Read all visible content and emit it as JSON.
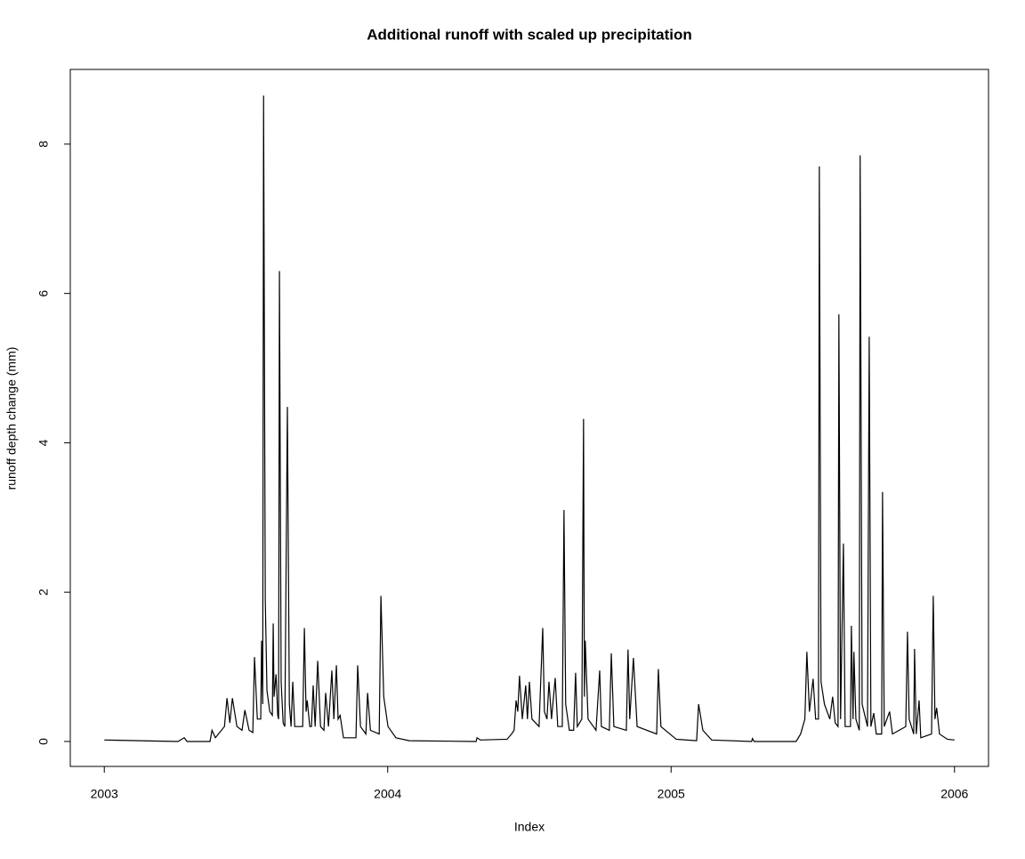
{
  "chart_data": {
    "type": "line",
    "title": "Additional runoff with scaled up precipitation",
    "xlabel": "Index",
    "ylabel": "runoff depth change (mm)",
    "color": "#000000",
    "xlim": [
      2002.88,
      2006.12
    ],
    "ylim": [
      -0.334,
      9.0
    ],
    "xticks": [
      2003,
      2004,
      2005,
      2006
    ],
    "yticks": [
      0,
      2,
      4,
      6,
      8
    ],
    "x": [
      2003.0,
      2003.26,
      2003.282,
      2003.292,
      2003.373,
      2003.38,
      2003.392,
      2003.424,
      2003.433,
      2003.443,
      2003.452,
      2003.468,
      2003.486,
      2003.496,
      2003.511,
      2003.524,
      2003.53,
      2003.54,
      2003.552,
      2003.555,
      2003.559,
      2003.562,
      2003.568,
      2003.574,
      2003.584,
      2003.593,
      2003.596,
      2003.599,
      2003.606,
      2003.612,
      2003.615,
      2003.618,
      2003.624,
      2003.631,
      2003.637,
      2003.646,
      2003.653,
      2003.659,
      2003.665,
      2003.672,
      2003.7,
      2003.706,
      2003.712,
      2003.716,
      2003.725,
      2003.731,
      2003.737,
      2003.744,
      2003.753,
      2003.763,
      2003.775,
      2003.781,
      2003.791,
      2003.803,
      2003.81,
      2003.819,
      2003.825,
      2003.832,
      2003.844,
      2003.888,
      2003.894,
      2003.904,
      2003.923,
      2003.929,
      2003.939,
      2003.97,
      2003.976,
      2003.986,
      2004.001,
      2004.029,
      2004.076,
      2004.312,
      2004.315,
      2004.327,
      2004.421,
      2004.437,
      2004.446,
      2004.453,
      2004.459,
      2004.465,
      2004.475,
      2004.487,
      2004.493,
      2004.5,
      2004.509,
      2004.534,
      2004.547,
      2004.553,
      2004.562,
      2004.569,
      2004.578,
      2004.591,
      2004.6,
      2004.616,
      2004.622,
      2004.628,
      2004.641,
      2004.656,
      2004.663,
      2004.669,
      2004.685,
      2004.691,
      2004.694,
      2004.697,
      2004.707,
      2004.735,
      2004.748,
      2004.754,
      2004.782,
      2004.789,
      2004.798,
      2004.842,
      2004.848,
      2004.854,
      2004.867,
      2004.88,
      2004.949,
      2004.955,
      2004.964,
      2005.018,
      2005.09,
      2005.097,
      2005.112,
      2005.143,
      2005.284,
      2005.287,
      2005.293,
      2005.441,
      2005.457,
      2005.472,
      2005.479,
      2005.488,
      2005.501,
      2005.51,
      2005.52,
      2005.523,
      2005.529,
      2005.541,
      2005.56,
      2005.57,
      2005.579,
      2005.589,
      2005.592,
      2005.598,
      2005.608,
      2005.614,
      2005.633,
      2005.636,
      2005.642,
      2005.645,
      2005.652,
      2005.664,
      2005.667,
      2005.674,
      2005.693,
      2005.699,
      2005.705,
      2005.715,
      2005.724,
      2005.743,
      2005.746,
      2005.752,
      2005.771,
      2005.781,
      2005.828,
      2005.834,
      2005.84,
      2005.856,
      2005.859,
      2005.865,
      2005.875,
      2005.881,
      2005.919,
      2005.925,
      2005.931,
      2005.937,
      2005.947,
      2005.975,
      2006.0
    ],
    "values": [
      0.02,
      0.0,
      0.05,
      0.0,
      0.0,
      0.15,
      0.05,
      0.2,
      0.58,
      0.25,
      0.58,
      0.2,
      0.15,
      0.42,
      0.15,
      0.12,
      1.13,
      0.3,
      0.3,
      1.35,
      0.5,
      8.65,
      1.9,
      0.68,
      0.4,
      0.35,
      1.58,
      0.6,
      0.9,
      0.35,
      0.3,
      6.3,
      0.8,
      0.25,
      0.2,
      4.48,
      0.5,
      0.2,
      0.8,
      0.2,
      0.2,
      1.52,
      0.4,
      0.55,
      0.2,
      0.2,
      0.75,
      0.2,
      1.08,
      0.2,
      0.15,
      0.65,
      0.2,
      0.95,
      0.3,
      1.02,
      0.3,
      0.35,
      0.05,
      0.05,
      1.02,
      0.2,
      0.1,
      0.65,
      0.15,
      0.1,
      1.95,
      0.6,
      0.2,
      0.05,
      0.01,
      0.0,
      0.05,
      0.02,
      0.03,
      0.1,
      0.15,
      0.55,
      0.4,
      0.88,
      0.3,
      0.75,
      0.3,
      0.8,
      0.3,
      0.2,
      1.52,
      0.4,
      0.3,
      0.8,
      0.3,
      0.85,
      0.2,
      0.2,
      3.1,
      0.5,
      0.15,
      0.15,
      0.92,
      0.2,
      0.3,
      4.32,
      0.6,
      1.35,
      0.3,
      0.15,
      0.95,
      0.2,
      0.15,
      1.18,
      0.2,
      0.15,
      1.23,
      0.3,
      1.12,
      0.2,
      0.1,
      0.97,
      0.2,
      0.03,
      0.01,
      0.5,
      0.15,
      0.02,
      0.0,
      0.04,
      0.0,
      0.0,
      0.1,
      0.3,
      1.2,
      0.4,
      0.84,
      0.3,
      0.3,
      7.7,
      0.8,
      0.5,
      0.3,
      0.6,
      0.25,
      0.2,
      5.72,
      0.3,
      2.65,
      0.2,
      0.2,
      1.55,
      0.3,
      1.2,
      0.3,
      0.15,
      7.85,
      0.5,
      0.2,
      5.42,
      0.2,
      0.38,
      0.1,
      0.1,
      3.34,
      0.2,
      0.4,
      0.1,
      0.2,
      1.47,
      0.3,
      0.1,
      1.24,
      0.1,
      0.55,
      0.05,
      0.1,
      1.95,
      0.3,
      0.45,
      0.1,
      0.03,
      0.02
    ]
  }
}
